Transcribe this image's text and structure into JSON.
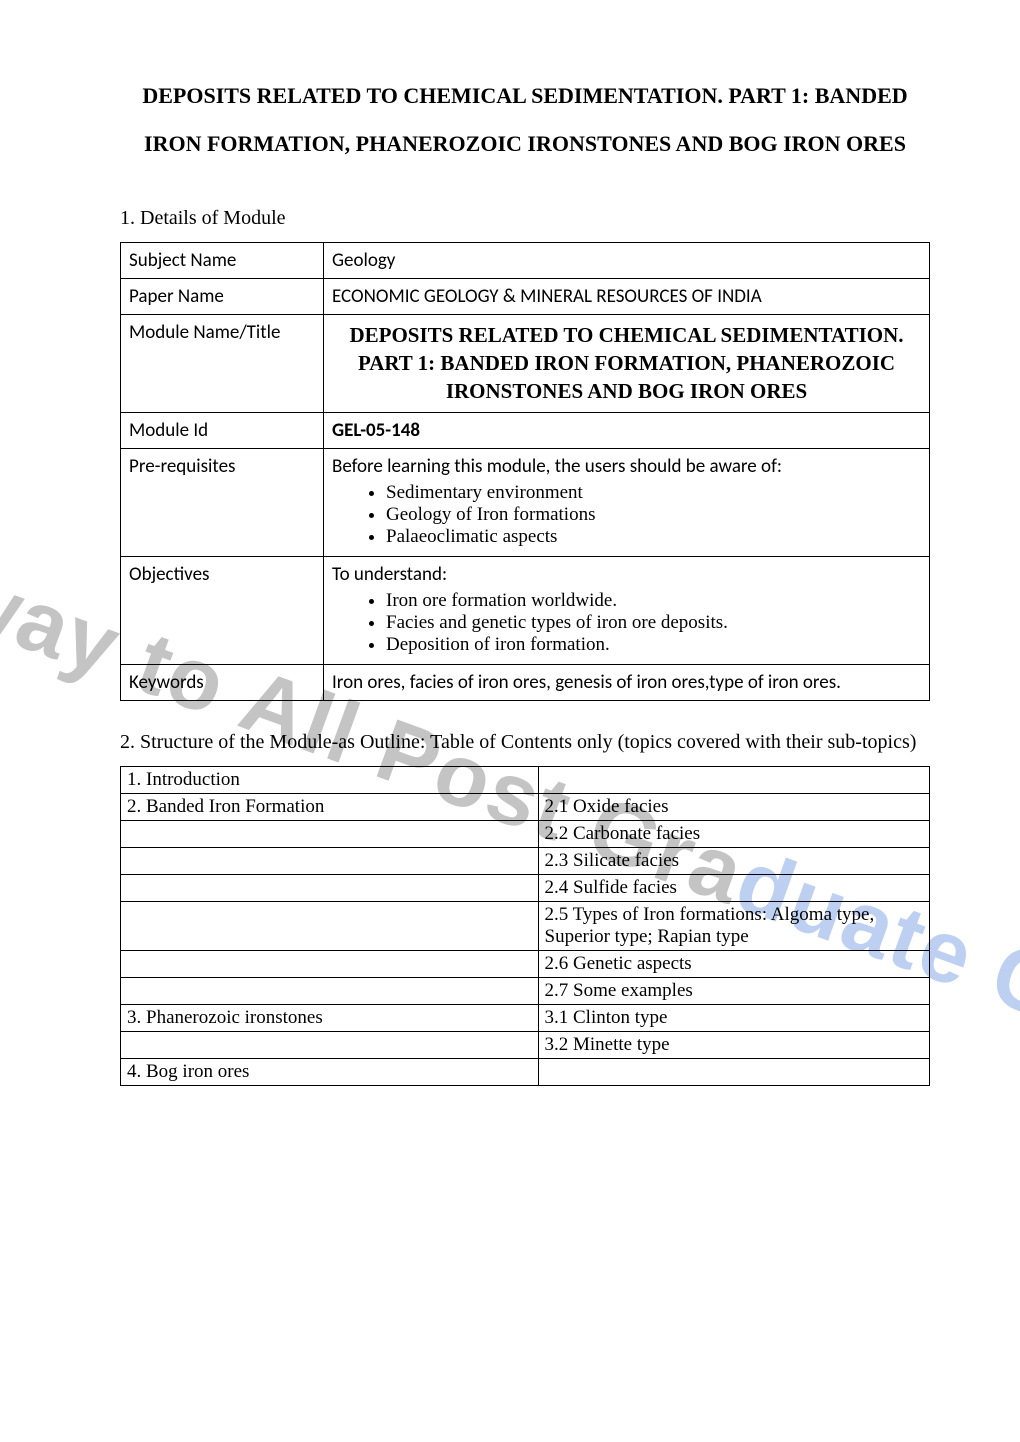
{
  "watermark": "A Gateway to All Post Graduate Courses",
  "title_line1": "DEPOSITS RELATED TO CHEMICAL SEDIMENTATION. PART 1: BANDED",
  "title_line2": "IRON FORMATION, PHANEROZOIC IRONSTONES AND BOG IRON ORES",
  "section1_label": "1.   Details of Module",
  "module": {
    "rows": [
      {
        "label": "Subject Name",
        "value": "Geology"
      },
      {
        "label": "Paper Name",
        "value": "ECONOMIC GEOLOGY & MINERAL RESOURCES OF INDIA"
      }
    ],
    "title_row": {
      "label": "Module Name/Title",
      "line1": "DEPOSITS RELATED TO CHEMICAL SEDIMENTATION.",
      "line2": "PART 1: BANDED IRON FORMATION, PHANEROZOIC",
      "line3": "IRONSTONES AND BOG IRON ORES"
    },
    "id_row": {
      "label": "Module Id",
      "value": "GEL-05-148"
    },
    "prereq": {
      "label": "Pre-requisites",
      "lead": "Before learning this module, the users should be aware of:",
      "items": [
        "Sedimentary environment",
        "Geology of Iron formations",
        "Palaeoclimatic aspects"
      ]
    },
    "objectives": {
      "label": "Objectives",
      "lead": "To understand:",
      "items": [
        "Iron ore formation worldwide.",
        "Facies and genetic types of iron ore deposits.",
        "Deposition of iron formation."
      ]
    },
    "keywords": {
      "label": "Keywords",
      "value": "Iron ores, facies of iron ores, genesis of iron ores,type of iron ores."
    }
  },
  "outline_caption": "2. Structure of the Module-as Outline: Table of Contents only (topics covered with their sub-topics)",
  "outline": {
    "rows": [
      {
        "left": "1. Introduction",
        "right": ""
      },
      {
        "left": "2. Banded Iron Formation",
        "right": "2.1 Oxide facies"
      },
      {
        "left": "",
        "right": "2.2 Carbonate facies"
      },
      {
        "left": "",
        "right": "2.3 Silicate facies"
      },
      {
        "left": "",
        "right": "2.4 Sulfide facies"
      },
      {
        "left": "",
        "right": "2.5 Types of Iron formations: Algoma type, Superior type; Rapian type"
      },
      {
        "left": "",
        "right": "2.6 Genetic aspects"
      },
      {
        "left": "",
        "right": "2.7 Some examples"
      },
      {
        "left": "3. Phanerozoic ironstones",
        "right": "3.1 Clinton type"
      },
      {
        "left": "",
        "right": "3.2 Minette type"
      },
      {
        "left": "4. Bog iron ores",
        "right": ""
      }
    ]
  },
  "colors": {
    "text": "#000000",
    "border": "#000000",
    "bg": "#ffffff",
    "wm_red": "rgba(210,40,40,0.30)",
    "wm_grey": "rgba(60,60,60,0.30)",
    "wm_blue": "rgba(40,100,210,0.30)"
  }
}
